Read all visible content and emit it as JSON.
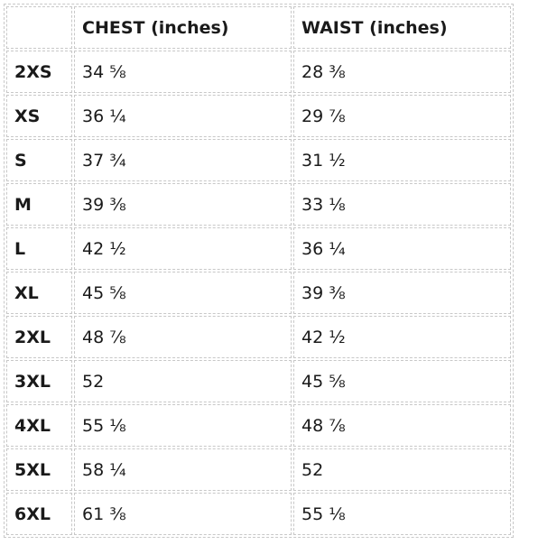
{
  "table": {
    "headers": [
      "",
      "CHEST (inches)",
      "WAIST (inches)"
    ],
    "rows": [
      {
        "size": "2XS",
        "chest": "34 ⅝",
        "waist": "28 ⅜"
      },
      {
        "size": "XS",
        "chest": "36 ¼",
        "waist": "29 ⅞"
      },
      {
        "size": "S",
        "chest": "37 ¾",
        "waist": "31 ½"
      },
      {
        "size": "M",
        "chest": "39 ⅜",
        "waist": "33 ⅛"
      },
      {
        "size": "L",
        "chest": "42 ½",
        "waist": "36 ¼"
      },
      {
        "size": "XL",
        "chest": "45 ⅝",
        "waist": "39 ⅜"
      },
      {
        "size": "2XL",
        "chest": "48 ⅞",
        "waist": "42 ½"
      },
      {
        "size": "3XL",
        "chest": "52",
        "waist": "45 ⅝"
      },
      {
        "size": "4XL",
        "chest": "55 ⅛",
        "waist": "48 ⅞"
      },
      {
        "size": "5XL",
        "chest": "58 ¼",
        "waist": "52"
      },
      {
        "size": "6XL",
        "chest": "61 ⅜",
        "waist": "55 ⅛"
      }
    ]
  }
}
